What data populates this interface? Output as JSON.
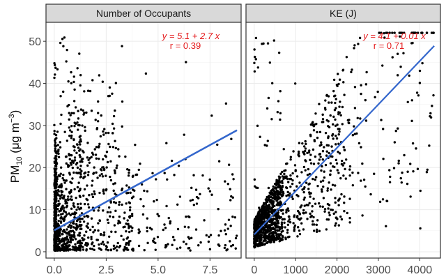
{
  "y_axis_label": {
    "base": "PM",
    "sub": "10",
    "unit_open": " (μg m",
    "sup": "−3",
    "unit_close": ")"
  },
  "chart_data": [
    {
      "type": "scatter",
      "title": "Number of Occupants",
      "xlabel": "",
      "ylabel": "PM10 (μg m−3)",
      "xlim": [
        -0.4,
        9.0
      ],
      "ylim": [
        -1.5,
        54.5
      ],
      "x_ticks": [
        0.0,
        2.5,
        5.0,
        7.5
      ],
      "x_tick_labels": [
        "0.0",
        "2.5",
        "5.0",
        "7.5"
      ],
      "y_ticks": [
        0,
        10,
        20,
        30,
        40,
        50
      ],
      "y_tick_labels": [
        "0",
        "10",
        "20",
        "30",
        "40",
        "50"
      ],
      "grid": true,
      "annotation": {
        "equation": "y = 5.1 + 2.7 x",
        "r": "r = 0.39",
        "color": "#e41a1c"
      },
      "fit": {
        "intercept": 5.1,
        "slope": 2.7,
        "x_range": [
          0.0,
          8.8
        ],
        "color": "#3366cc"
      },
      "points_seed": 11,
      "points_count": 1300
    },
    {
      "type": "scatter",
      "title": "KE (J)",
      "xlabel": "",
      "ylabel": "PM10 (μg m−3)",
      "xlim": [
        -200,
        4500
      ],
      "ylim": [
        -1.5,
        54.5
      ],
      "x_ticks": [
        0,
        1000,
        2000,
        3000,
        4000
      ],
      "x_tick_labels": [
        "0",
        "1000",
        "2000",
        "3000",
        "4000"
      ],
      "y_ticks": [
        0,
        10,
        20,
        30,
        40,
        50
      ],
      "y_tick_labels": [
        "0",
        "10",
        "20",
        "30",
        "40",
        "50"
      ],
      "grid": true,
      "annotation": {
        "equation": "y = 4.1 + 0.01 x",
        "r": "r = 0.71",
        "color": "#e41a1c"
      },
      "fit": {
        "intercept": 4.1,
        "slope": 0.0103,
        "x_range": [
          0,
          4350
        ],
        "color": "#3366cc"
      },
      "points_seed": 29,
      "points_count": 1300
    }
  ],
  "colors": {
    "strip_bg": "#d9d9d9",
    "grid": "#ebebeb",
    "point": "#000000",
    "axis_text": "#4d4d4d"
  }
}
